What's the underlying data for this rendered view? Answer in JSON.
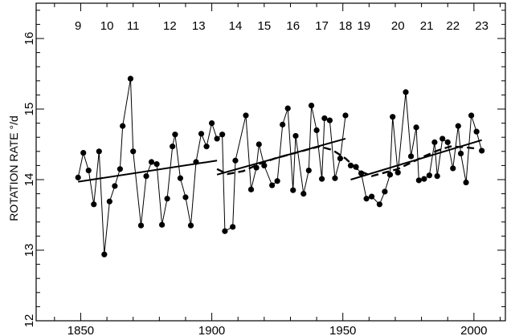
{
  "chart_data": {
    "type": "scatter",
    "title": "",
    "xlabel": "",
    "ylabel": "ROTATION RATE °/d",
    "xlim": [
      1833,
      2012
    ],
    "ylim": [
      12,
      16.5
    ],
    "x_ticks": [
      1850,
      1900,
      1950,
      2000
    ],
    "y_ticks": [
      12,
      13,
      14,
      15,
      16
    ],
    "grid": false,
    "legend": "none",
    "cycle_labels": [
      {
        "label": "9",
        "x": 1849
      },
      {
        "label": "10",
        "x": 1860
      },
      {
        "label": "11",
        "x": 1870
      },
      {
        "label": "12",
        "x": 1884
      },
      {
        "label": "13",
        "x": 1895
      },
      {
        "label": "14",
        "x": 1909
      },
      {
        "label": "15",
        "x": 1920
      },
      {
        "label": "16",
        "x": 1931
      },
      {
        "label": "17",
        "x": 1942
      },
      {
        "label": "18",
        "x": 1951
      },
      {
        "label": "19",
        "x": 1958
      },
      {
        "label": "20",
        "x": 1971
      },
      {
        "label": "21",
        "x": 1982
      },
      {
        "label": "22",
        "x": 1992
      },
      {
        "label": "23",
        "x": 2003
      }
    ],
    "series": [
      {
        "style": "points-connected",
        "color": "#000000",
        "points": [
          [
            1849,
            14.03
          ],
          [
            1851,
            14.38
          ],
          [
            1853,
            14.13
          ],
          [
            1855,
            13.65
          ],
          [
            1857,
            14.4
          ],
          [
            1859,
            12.94
          ],
          [
            1861,
            13.69
          ],
          [
            1863,
            13.91
          ],
          [
            1865,
            14.15
          ],
          [
            1866,
            14.76
          ],
          [
            1869,
            15.43
          ],
          [
            1870,
            14.4
          ],
          [
            1873,
            13.35
          ],
          [
            1875,
            14.05
          ],
          [
            1877,
            14.25
          ],
          [
            1879,
            14.22
          ],
          [
            1881,
            13.36
          ],
          [
            1883,
            13.73
          ],
          [
            1885,
            14.47
          ],
          [
            1886,
            14.64
          ],
          [
            1888,
            14.02
          ],
          [
            1890,
            13.75
          ],
          [
            1892,
            13.35
          ],
          [
            1894,
            14.25
          ],
          [
            1896,
            14.65
          ],
          [
            1898,
            14.47
          ],
          [
            1900,
            14.8
          ],
          [
            1902,
            14.58
          ],
          [
            1904,
            14.64
          ],
          [
            1905,
            13.27
          ],
          [
            1908,
            13.33
          ],
          [
            1909,
            14.27
          ],
          [
            1913,
            14.91
          ],
          [
            1915,
            13.86
          ],
          [
            1917,
            14.17
          ],
          [
            1918,
            14.5
          ],
          [
            1920,
            14.2
          ],
          [
            1923,
            13.92
          ],
          [
            1925,
            13.98
          ],
          [
            1927,
            14.78
          ],
          [
            1929,
            15.01
          ],
          [
            1931,
            13.85
          ],
          [
            1932,
            14.62
          ],
          [
            1935,
            13.8
          ],
          [
            1937,
            14.13
          ],
          [
            1938,
            15.05
          ],
          [
            1940,
            14.7
          ],
          [
            1942,
            14.01
          ],
          [
            1943,
            14.87
          ],
          [
            1945,
            14.84
          ],
          [
            1947,
            14.02
          ],
          [
            1949,
            14.3
          ],
          [
            1951,
            14.91
          ]
        ]
      },
      {
        "style": "points-connected",
        "color": "#000000",
        "points": [
          [
            1953,
            14.2
          ],
          [
            1955,
            14.18
          ],
          [
            1957,
            14.09
          ],
          [
            1959,
            13.73
          ],
          [
            1961,
            13.76
          ],
          [
            1964,
            13.65
          ],
          [
            1966,
            13.83
          ],
          [
            1968,
            14.07
          ],
          [
            1969,
            14.89
          ],
          [
            1971,
            14.1
          ],
          [
            1974,
            15.24
          ],
          [
            1976,
            14.33
          ],
          [
            1978,
            14.74
          ],
          [
            1979,
            13.99
          ],
          [
            1981,
            14.01
          ],
          [
            1983,
            14.06
          ],
          [
            1985,
            14.53
          ],
          [
            1986,
            14.05
          ],
          [
            1988,
            14.58
          ],
          [
            1990,
            14.53
          ],
          [
            1992,
            14.16
          ],
          [
            1994,
            14.76
          ],
          [
            1995,
            14.37
          ],
          [
            1997,
            13.96
          ],
          [
            1999,
            14.91
          ],
          [
            2001,
            14.68
          ],
          [
            2003,
            14.41
          ]
        ]
      },
      {
        "style": "solid-line",
        "color": "#000000",
        "segments": [
          [
            [
              1849,
              13.97
            ],
            [
              1902,
              14.27
            ]
          ],
          [
            [
              1902,
              14.07
            ],
            [
              1951,
              14.58
            ]
          ],
          [
            [
              1953,
              14.0
            ],
            [
              2003,
              14.56
            ]
          ]
        ]
      },
      {
        "style": "dashed-line",
        "color": "#000000",
        "points": [
          [
            1902,
            14.15
          ],
          [
            1906,
            14.08
          ],
          [
            1912,
            14.12
          ],
          [
            1918,
            14.22
          ],
          [
            1924,
            14.3
          ],
          [
            1930,
            14.36
          ],
          [
            1936,
            14.42
          ],
          [
            1941,
            14.47
          ],
          [
            1946,
            14.42
          ],
          [
            1951,
            14.3
          ],
          [
            1956,
            14.13
          ],
          [
            1961,
            14.05
          ],
          [
            1966,
            14.1
          ],
          [
            1971,
            14.15
          ],
          [
            1976,
            14.24
          ],
          [
            1981,
            14.33
          ],
          [
            1986,
            14.41
          ],
          [
            1991,
            14.47
          ],
          [
            1996,
            14.46
          ],
          [
            2001,
            14.44
          ]
        ]
      }
    ]
  }
}
